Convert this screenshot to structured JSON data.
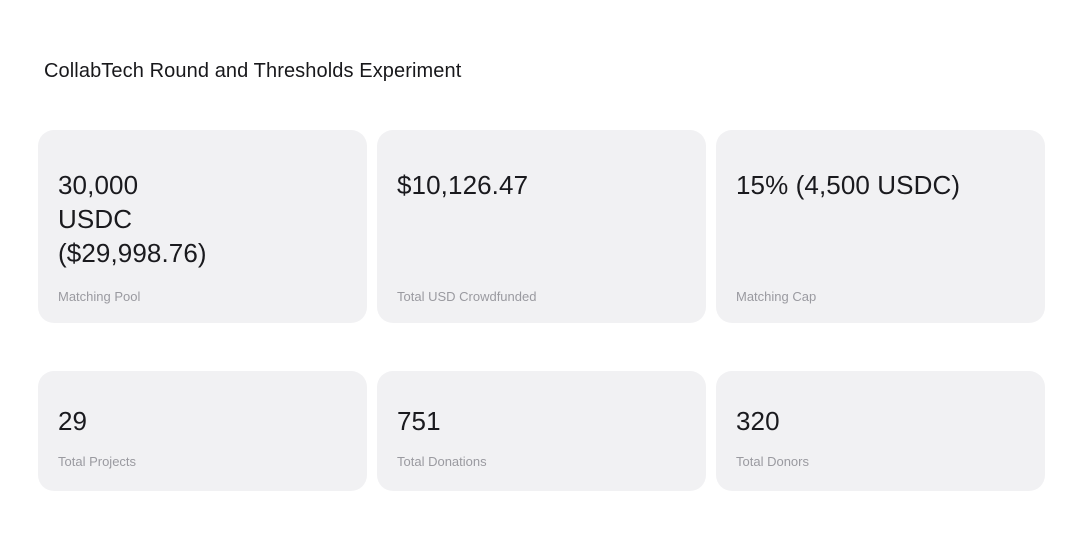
{
  "page": {
    "title": "CollabTech Round and Thresholds Experiment"
  },
  "colors": {
    "card_bg": "#f1f1f3",
    "value_text": "#1a1a1e",
    "label_text": "#9a9aa0",
    "title_text": "#18181b",
    "page_bg": "#ffffff"
  },
  "stats": [
    {
      "value": "30,000\nUSDC\n($29,998.76)",
      "label": "Matching Pool"
    },
    {
      "value": "$10,126.47",
      "label": "Total USD Crowdfunded"
    },
    {
      "value": "15% (4,500 USDC)",
      "label": "Matching Cap"
    },
    {
      "value": "29",
      "label": "Total Projects"
    },
    {
      "value": "751",
      "label": "Total Donations"
    },
    {
      "value": "320",
      "label": "Total Donors"
    }
  ]
}
